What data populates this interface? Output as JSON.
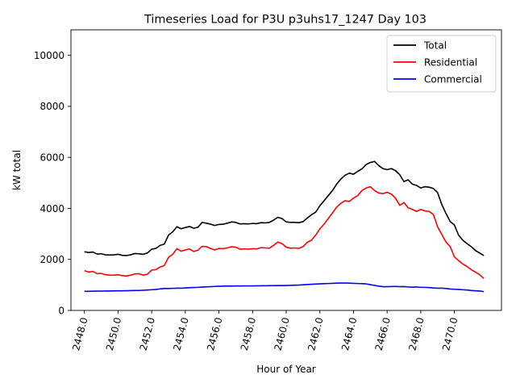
{
  "chart_data": {
    "type": "line",
    "title": "Timeseries Load for P3U p3uhs17_1247  Day 103",
    "xlabel": "Hour of Year",
    "ylabel": "kW total",
    "xlim": [
      2447.2,
      2472.8
    ],
    "ylim": [
      0,
      11000
    ],
    "x_ticks": [
      2448.0,
      2450.0,
      2452.0,
      2454.0,
      2456.0,
      2458.0,
      2460.0,
      2462.0,
      2464.0,
      2466.0,
      2468.0,
      2470.0
    ],
    "x_tick_labels": [
      "2448.0",
      "2450.0",
      "2452.0",
      "2454.0",
      "2456.0",
      "2458.0",
      "2460.0",
      "2462.0",
      "2464.0",
      "2466.0",
      "2468.0",
      "2470.0"
    ],
    "y_ticks": [
      0,
      2000,
      4000,
      6000,
      8000,
      10000
    ],
    "y_tick_labels": [
      "0",
      "2000",
      "4000",
      "6000",
      "8000",
      "10000"
    ],
    "grid": false,
    "legend_position": "top-right",
    "x": [
      2448.0,
      2448.25,
      2448.5,
      2448.75,
      2449.0,
      2449.25,
      2449.5,
      2449.75,
      2450.0,
      2450.25,
      2450.5,
      2450.75,
      2451.0,
      2451.25,
      2451.5,
      2451.75,
      2452.0,
      2452.25,
      2452.5,
      2452.75,
      2453.0,
      2453.25,
      2453.5,
      2453.75,
      2454.0,
      2454.25,
      2454.5,
      2454.75,
      2455.0,
      2455.25,
      2455.5,
      2455.75,
      2456.0,
      2456.25,
      2456.5,
      2456.75,
      2457.0,
      2457.25,
      2457.5,
      2457.75,
      2458.0,
      2458.25,
      2458.5,
      2458.75,
      2459.0,
      2459.25,
      2459.5,
      2459.75,
      2460.0,
      2460.25,
      2460.5,
      2460.75,
      2461.0,
      2461.25,
      2461.5,
      2461.75,
      2462.0,
      2462.25,
      2462.5,
      2462.75,
      2463.0,
      2463.25,
      2463.5,
      2463.75,
      2464.0,
      2464.25,
      2464.5,
      2464.75,
      2465.0,
      2465.25,
      2465.5,
      2465.75,
      2466.0,
      2466.25,
      2466.5,
      2466.75,
      2467.0,
      2467.25,
      2467.5,
      2467.75,
      2468.0,
      2468.25,
      2468.5,
      2468.75,
      2469.0,
      2469.25,
      2469.5,
      2469.75,
      2470.0,
      2470.25,
      2470.5,
      2470.75,
      2471.0,
      2471.25,
      2471.5,
      2471.75
    ],
    "series": [
      {
        "name": "Total",
        "color": "#000000",
        "values": [
          2300,
          2270,
          2290,
          2210,
          2220,
          2180,
          2170,
          2180,
          2200,
          2160,
          2150,
          2180,
          2230,
          2220,
          2200,
          2250,
          2400,
          2430,
          2550,
          2600,
          2950,
          3080,
          3280,
          3200,
          3250,
          3290,
          3220,
          3260,
          3450,
          3420,
          3380,
          3330,
          3370,
          3380,
          3420,
          3470,
          3450,
          3390,
          3400,
          3390,
          3410,
          3400,
          3440,
          3430,
          3450,
          3540,
          3650,
          3600,
          3470,
          3450,
          3450,
          3440,
          3480,
          3620,
          3750,
          3850,
          4100,
          4300,
          4500,
          4700,
          4950,
          5150,
          5300,
          5380,
          5340,
          5450,
          5550,
          5720,
          5800,
          5840,
          5680,
          5560,
          5520,
          5560,
          5480,
          5320,
          5050,
          5120,
          4950,
          4900,
          4800,
          4850,
          4830,
          4780,
          4620,
          4150,
          3800,
          3480,
          3350,
          2950,
          2750,
          2620,
          2500,
          2350,
          2250,
          2150
        ]
      },
      {
        "name": "Residential",
        "color": "#ff0000",
        "values": [
          1560,
          1500,
          1530,
          1440,
          1450,
          1400,
          1380,
          1380,
          1400,
          1360,
          1350,
          1380,
          1430,
          1440,
          1380,
          1420,
          1580,
          1600,
          1700,
          1760,
          2080,
          2200,
          2420,
          2320,
          2370,
          2410,
          2310,
          2360,
          2510,
          2500,
          2430,
          2370,
          2430,
          2420,
          2450,
          2500,
          2480,
          2400,
          2410,
          2400,
          2420,
          2410,
          2460,
          2450,
          2440,
          2550,
          2680,
          2620,
          2480,
          2440,
          2450,
          2430,
          2500,
          2670,
          2750,
          2950,
          3200,
          3380,
          3600,
          3820,
          4050,
          4200,
          4300,
          4270,
          4400,
          4500,
          4700,
          4800,
          4850,
          4700,
          4600,
          4580,
          4630,
          4560,
          4400,
          4120,
          4230,
          4020,
          3960,
          3880,
          3960,
          3900,
          3880,
          3760,
          3280,
          2980,
          2680,
          2500,
          2100,
          1950,
          1820,
          1720,
          1600,
          1500,
          1400,
          1250
        ]
      },
      {
        "name": "Commercial",
        "color": "#0000ff",
        "values": [
          750,
          750,
          752,
          755,
          758,
          760,
          762,
          765,
          770,
          770,
          772,
          775,
          780,
          782,
          790,
          800,
          810,
          820,
          845,
          860,
          860,
          865,
          870,
          870,
          880,
          890,
          900,
          905,
          915,
          925,
          930,
          940,
          945,
          950,
          955,
          955,
          958,
          958,
          960,
          960,
          962,
          964,
          966,
          968,
          970,
          972,
          975,
          975,
          978,
          982,
          990,
          995,
          1005,
          1015,
          1025,
          1032,
          1040,
          1048,
          1055,
          1062,
          1068,
          1072,
          1075,
          1070,
          1060,
          1055,
          1048,
          1040,
          1010,
          980,
          950,
          930,
          930,
          935,
          940,
          930,
          935,
          920,
          910,
          920,
          905,
          905,
          895,
          880,
          870,
          870,
          860,
          840,
          830,
          820,
          810,
          800,
          780,
          770,
          760,
          735
        ]
      }
    ]
  }
}
